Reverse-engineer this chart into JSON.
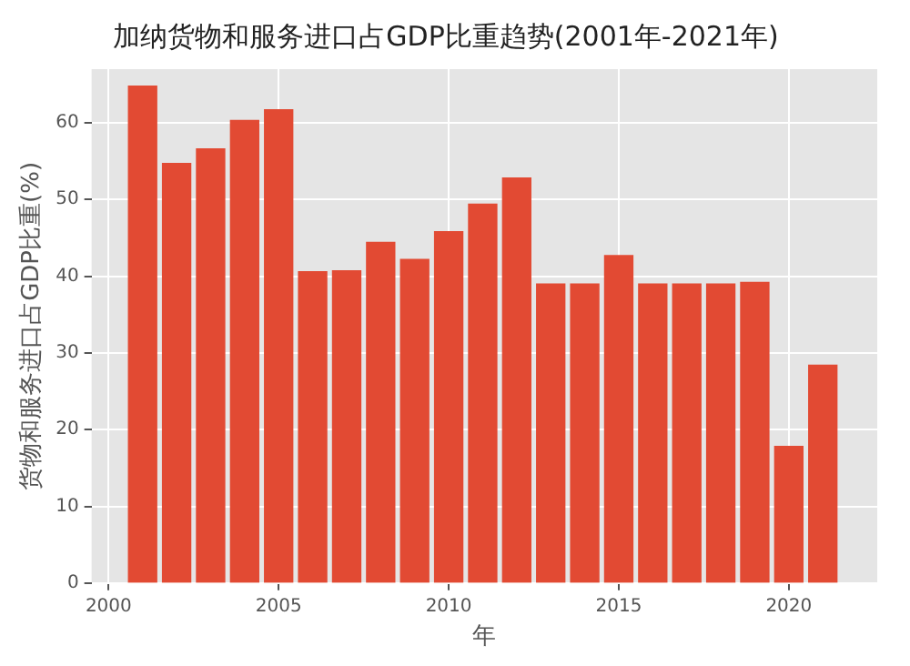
{
  "chart_data": {
    "type": "bar",
    "title": "加纳货物和服务进口占GDP比重趋势(2001年-2021年)",
    "xlabel": "年",
    "ylabel": "货物和服务进口占GDP比重(%)",
    "x": [
      2001,
      2002,
      2003,
      2004,
      2005,
      2006,
      2007,
      2008,
      2009,
      2010,
      2011,
      2012,
      2013,
      2014,
      2015,
      2016,
      2017,
      2018,
      2019,
      2020,
      2021
    ],
    "series": [
      {
        "color": "#e24a33",
        "values": [
          64.8,
          54.7,
          56.6,
          60.3,
          61.7,
          40.6,
          40.7,
          44.4,
          42.2,
          45.8,
          49.4,
          52.8,
          39,
          39,
          42.7,
          39,
          39,
          39,
          39.2,
          17.8,
          28.4
        ]
      }
    ],
    "xlim": [
      1999.5,
      2022.6
    ],
    "xticks": [
      2000,
      2005,
      2010,
      2015,
      2020
    ],
    "ylim": [
      0,
      67
    ],
    "yticks": [
      0,
      10,
      20,
      30,
      40,
      50,
      60
    ],
    "grid": true
  }
}
